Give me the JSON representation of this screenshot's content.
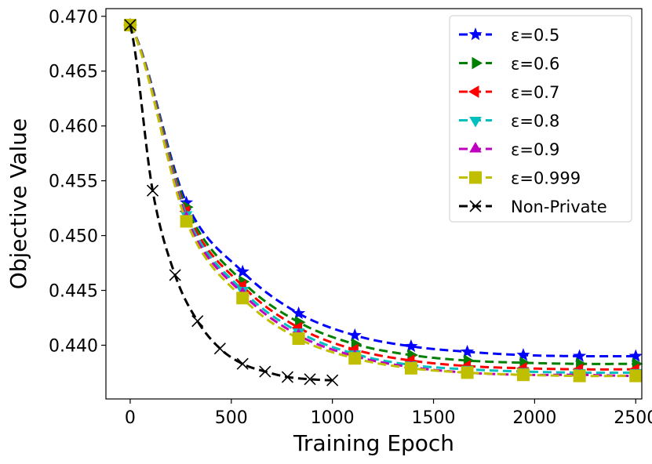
{
  "chart_data": {
    "type": "line",
    "title": "",
    "xlabel": "Training Epoch",
    "ylabel": "Objective Value",
    "xlim": [
      -120,
      2530
    ],
    "ylim": [
      0.4351,
      0.4707
    ],
    "xticks": [
      0,
      500,
      1000,
      1500,
      2000,
      2500
    ],
    "xtick_labels": [
      "0",
      "500",
      "1000",
      "1500",
      "2000",
      "2500"
    ],
    "yticks": [
      0.44,
      0.445,
      0.45,
      0.455,
      0.46,
      0.465,
      0.47
    ],
    "ytick_labels": [
      "0.440",
      "0.445",
      "0.450",
      "0.455",
      "0.460",
      "0.465",
      "0.470"
    ],
    "grid": false,
    "legend_position": "top-right",
    "series": [
      {
        "name": "ε=0.5",
        "color": "#0000ff",
        "marker": "star",
        "x": [
          0,
          278,
          556,
          833,
          1111,
          1389,
          1667,
          1944,
          2222,
          2500
        ],
        "y": [
          0.4692,
          0.453,
          0.4467,
          0.4429,
          0.4409,
          0.4399,
          0.4394,
          0.4391,
          0.439,
          0.439
        ]
      },
      {
        "name": "ε=0.6",
        "color": "#008000",
        "marker": "triangle-right",
        "x": [
          0,
          278,
          556,
          833,
          1111,
          1389,
          1667,
          1944,
          2222,
          2500
        ],
        "y": [
          0.4692,
          0.4526,
          0.4458,
          0.4421,
          0.4401,
          0.4391,
          0.4386,
          0.4384,
          0.4383,
          0.4383
        ]
      },
      {
        "name": "ε=0.7",
        "color": "#ff0000",
        "marker": "triangle-left",
        "x": [
          0,
          278,
          556,
          833,
          1111,
          1389,
          1667,
          1944,
          2222,
          2500
        ],
        "y": [
          0.4692,
          0.4522,
          0.4454,
          0.4416,
          0.4396,
          0.4386,
          0.4381,
          0.4379,
          0.4378,
          0.4378
        ]
      },
      {
        "name": "ε=0.8",
        "color": "#00bfbf",
        "marker": "triangle-down",
        "x": [
          0,
          278,
          556,
          833,
          1111,
          1389,
          1667,
          1944,
          2222,
          2500
        ],
        "y": [
          0.4692,
          0.4519,
          0.445,
          0.4412,
          0.4392,
          0.4382,
          0.4378,
          0.4376,
          0.4375,
          0.4375
        ]
      },
      {
        "name": "ε=0.9",
        "color": "#bf00bf",
        "marker": "triangle-up",
        "x": [
          0,
          278,
          556,
          833,
          1111,
          1389,
          1667,
          1944,
          2222,
          2500
        ],
        "y": [
          0.4692,
          0.4516,
          0.4447,
          0.4409,
          0.439,
          0.438,
          0.4375,
          0.4373,
          0.4373,
          0.4372
        ]
      },
      {
        "name": "ε=0.999",
        "color": "#bfbf00",
        "marker": "square",
        "x": [
          0,
          278,
          556,
          833,
          1111,
          1389,
          1667,
          1944,
          2222,
          2500
        ],
        "y": [
          0.4692,
          0.4513,
          0.4443,
          0.4406,
          0.4388,
          0.4379,
          0.4375,
          0.4373,
          0.4372,
          0.4372
        ]
      },
      {
        "name": "Non-Private",
        "color": "#000000",
        "marker": "x",
        "x": [
          0,
          111,
          222,
          333,
          444,
          556,
          667,
          778,
          889,
          1000
        ],
        "y": [
          0.4692,
          0.4541,
          0.4464,
          0.4422,
          0.4397,
          0.4383,
          0.4376,
          0.4371,
          0.4369,
          0.4368
        ]
      }
    ]
  }
}
